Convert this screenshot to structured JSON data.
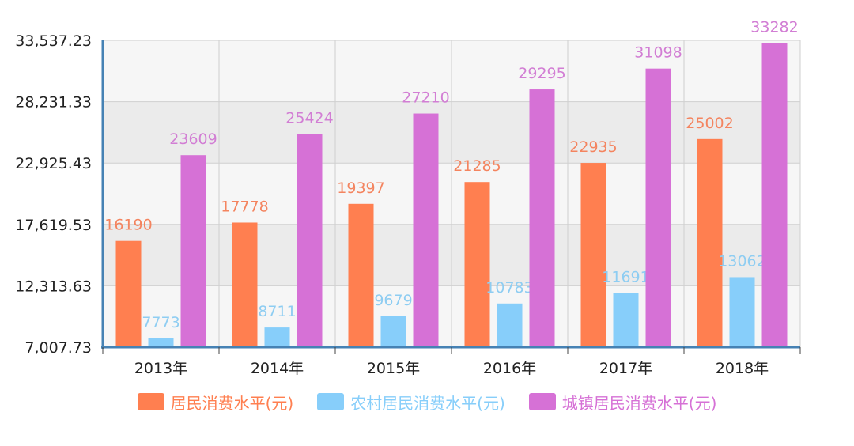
{
  "colors": {
    "urban": "#d671d6",
    "residents": "#ff7f50",
    "rural": "#87cefa",
    "axis": "#4682b4"
  },
  "chart_data": {
    "type": "bar",
    "categories": [
      "2013年",
      "2014年",
      "2015年",
      "2016年",
      "2017年",
      "2018年"
    ],
    "yticks": [
      "7,007.73",
      "12,313.63",
      "17,619.53",
      "22,925.43",
      "28,231.33",
      "33,537.23"
    ],
    "ylim": [
      7007.73,
      33537.23
    ],
    "grid": true,
    "legend_position": "bottom",
    "series": [
      {
        "name": "居民消费水平(元)",
        "values": [
          16190,
          17778,
          19397,
          21285,
          22935,
          25002
        ]
      },
      {
        "name": "农村居民消费水平(元)",
        "values": [
          7773,
          8711,
          9679,
          10783,
          11691,
          13062
        ]
      },
      {
        "name": "城镇居民消费水平(元)",
        "values": [
          23609,
          25424,
          27210,
          29295,
          31098,
          33282
        ]
      }
    ]
  }
}
